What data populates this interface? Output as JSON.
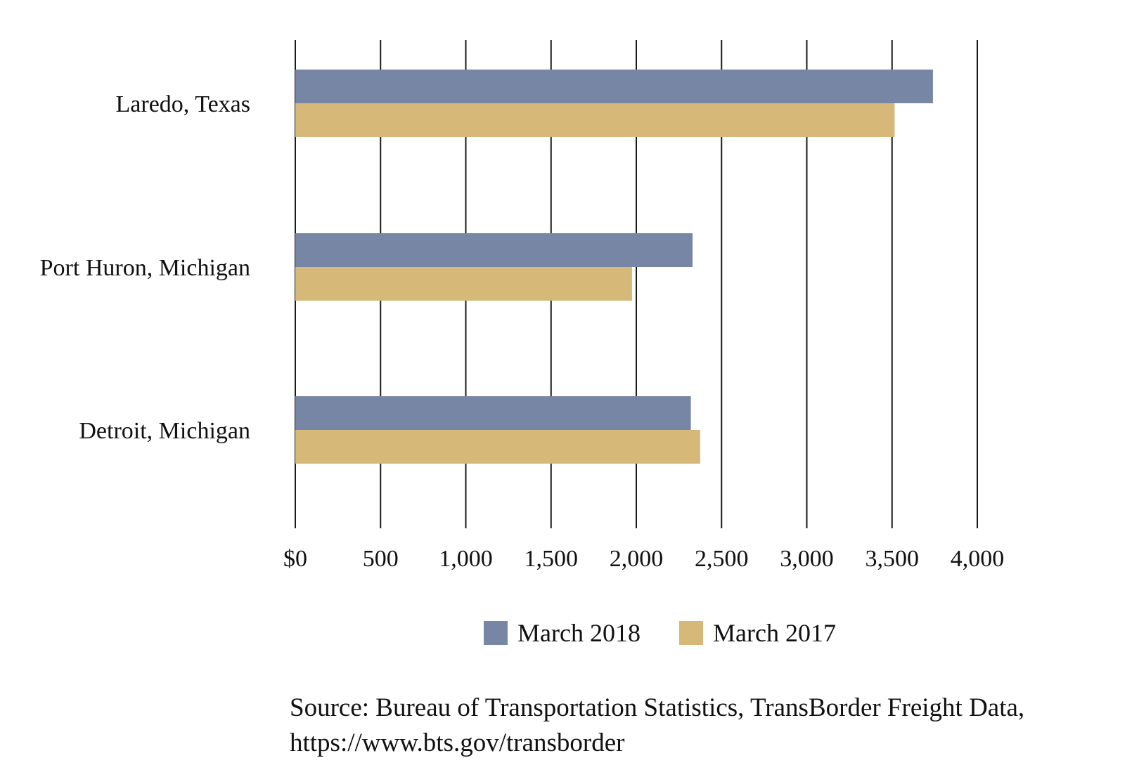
{
  "chart_data": {
    "type": "bar",
    "orientation": "horizontal",
    "categories": [
      "Laredo, Texas",
      "Port Huron, Michigan",
      "Detroit, Michigan"
    ],
    "series": [
      {
        "name": "March 2018",
        "color": "#7886a5",
        "values": [
          3740,
          2330,
          2320
        ]
      },
      {
        "name": "March 2017",
        "color": "#d6b978",
        "values": [
          3515,
          1975,
          2375
        ]
      }
    ],
    "xlim": [
      0,
      4000
    ],
    "x_ticks": [
      0,
      500,
      1000,
      1500,
      2000,
      2500,
      3000,
      3500,
      4000
    ],
    "x_tick_labels": [
      "$0",
      "500",
      "1,000",
      "1,500",
      "2,000",
      "2,500",
      "3,000",
      "3,500",
      "4,000"
    ],
    "grid": "vertical",
    "legend_position": "bottom-center",
    "source_lines": [
      "Source: Bureau of Transportation Statistics, TransBorder Freight Data,",
      "https://www.bts.gov/transborder"
    ]
  }
}
